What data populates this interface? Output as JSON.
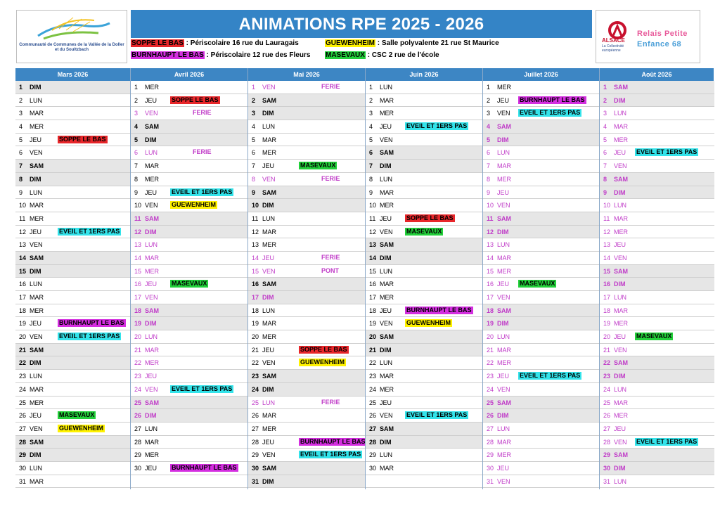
{
  "colors": {
    "blue_header": "#3484c6",
    "soppe": "#e8262a",
    "burnhaupt": "#d42ee0",
    "guewenheim": "#fff200",
    "masevaux": "#22d03a",
    "eveil": "#33e3ea",
    "holiday_text": "#c03cc8"
  },
  "logo_left": {
    "text": "Communauté de Communes de la Vallée de la Doller et du Soultzbach"
  },
  "header": {
    "title": "ANIMATIONS RPE 2025 - 2026",
    "locations": [
      {
        "tag": "SOPPE LE BAS",
        "color": "soppe",
        "text": " : Périscolaire 16 rue du Lauragais"
      },
      {
        "tag": "GUEWENHEIM",
        "color": "guewenheim",
        "text": " : Salle polyvalente 21 rue St Maurice"
      },
      {
        "tag": "BURNHAUPT LE BAS",
        "color": "burnhaupt",
        "text": " : Périscolaire 12 rue des Fleurs"
      },
      {
        "tag": "MASEVAUX",
        "color": "masevaux",
        "text": " : CSC 2 rue de l'école"
      }
    ]
  },
  "logo_right": {
    "alsace": "ALSACE",
    "alsace_sub": "La Collectivité européenne",
    "rpe_line1": "Relais Petite",
    "rpe_line2": "Enfance 68"
  },
  "months": [
    {
      "name": "Mars 2026",
      "first_dow": 6,
      "days": 31,
      "vacation": [],
      "events": {
        "5": [
          "SOPPE LE BAS",
          "soppe"
        ],
        "12": [
          "EVEIL ET 1ERS PAS",
          "eveil"
        ],
        "19": [
          "BURNHAUPT LE BAS",
          "burnhaupt"
        ],
        "20": [
          "EVEIL ET 1ERS PAS",
          "eveil"
        ],
        "26": [
          "MASEVAUX",
          "masevaux"
        ],
        "27": [
          "GUEWENHEIM",
          "guewenheim"
        ]
      }
    },
    {
      "name": "Avril 2026",
      "first_dow": 2,
      "days": 30,
      "vacation": [
        3,
        6,
        11,
        12,
        13,
        14,
        15,
        16,
        17,
        18,
        19,
        20,
        21,
        22,
        23,
        24,
        25,
        26
      ],
      "events": {
        "2": [
          "SOPPE LE BAS",
          "soppe"
        ],
        "3": [
          "FERIE",
          "text"
        ],
        "6": [
          "FERIE",
          "text"
        ],
        "9": [
          "EVEIL ET 1ERS PAS",
          "eveil"
        ],
        "10": [
          "GUEWENHEIM",
          "guewenheim"
        ],
        "16": [
          "MASEVAUX",
          "masevaux"
        ],
        "24": [
          "EVEIL ET 1ERS PAS",
          "eveil"
        ],
        "30": [
          "BURNHAUPT LE BAS",
          "burnhaupt"
        ]
      }
    },
    {
      "name": "Mai 2026",
      "first_dow": 4,
      "days": 31,
      "vacation": [
        1,
        8,
        14,
        15,
        17,
        25
      ],
      "events": {
        "1": [
          "FERIE",
          "text"
        ],
        "7": [
          "MASEVAUX",
          "masevaux"
        ],
        "8": [
          "FERIE",
          "text"
        ],
        "14": [
          "FERIE",
          "text"
        ],
        "15": [
          "PONT",
          "text"
        ],
        "21": [
          "SOPPE LE BAS",
          "soppe"
        ],
        "22": [
          "GUEWENHEIM",
          "guewenheim"
        ],
        "25": [
          "FERIE",
          "text"
        ],
        "28": [
          "BURNHAUPT LE BAS",
          "burnhaupt"
        ],
        "29": [
          "EVEIL ET 1ERS PAS",
          "eveil"
        ]
      }
    },
    {
      "name": "Juin 2026",
      "first_dow": 0,
      "days": 30,
      "vacation": [],
      "events": {
        "4": [
          "EVEIL ET 1ERS PAS",
          "eveil"
        ],
        "11": [
          "SOPPE LE BAS",
          "soppe"
        ],
        "12": [
          "MASEVAUX",
          "masevaux"
        ],
        "18": [
          "BURNHAUPT LE BAS",
          "burnhaupt"
        ],
        "19": [
          "GUEWENHEIM",
          "guewenheim"
        ],
        "26": [
          "EVEIL ET 1ERS PAS",
          "eveil"
        ]
      }
    },
    {
      "name": "Juillet 2026",
      "first_dow": 2,
      "days": 31,
      "vacation": [
        4,
        5,
        6,
        7,
        8,
        9,
        10,
        11,
        12,
        13,
        14,
        15,
        16,
        17,
        18,
        19,
        20,
        21,
        22,
        23,
        24,
        25,
        26,
        27,
        28,
        29,
        30,
        31
      ],
      "events": {
        "2": [
          "BURNHAUPT LE BAS",
          "burnhaupt"
        ],
        "3": [
          "EVEIL ET 1ERS PAS",
          "eveil"
        ],
        "16": [
          "MASEVAUX",
          "masevaux"
        ],
        "23": [
          "EVEIL ET 1ERS PAS",
          "eveil"
        ]
      }
    },
    {
      "name": "Août 2026",
      "first_dow": 5,
      "days": 31,
      "vacation": [
        1,
        2,
        3,
        4,
        5,
        6,
        7,
        8,
        9,
        10,
        11,
        12,
        13,
        14,
        15,
        16,
        17,
        18,
        19,
        20,
        21,
        22,
        23,
        24,
        25,
        26,
        27,
        28,
        29,
        30,
        31
      ],
      "events": {
        "6": [
          "EVEIL ET 1ERS PAS",
          "eveil"
        ],
        "20": [
          "MASEVAUX",
          "masevaux"
        ],
        "28": [
          "EVEIL ET 1ERS PAS",
          "eveil"
        ]
      }
    }
  ],
  "day_names": [
    "LUN",
    "MAR",
    "MER",
    "JEU",
    "VEN",
    "SAM",
    "DIM"
  ]
}
